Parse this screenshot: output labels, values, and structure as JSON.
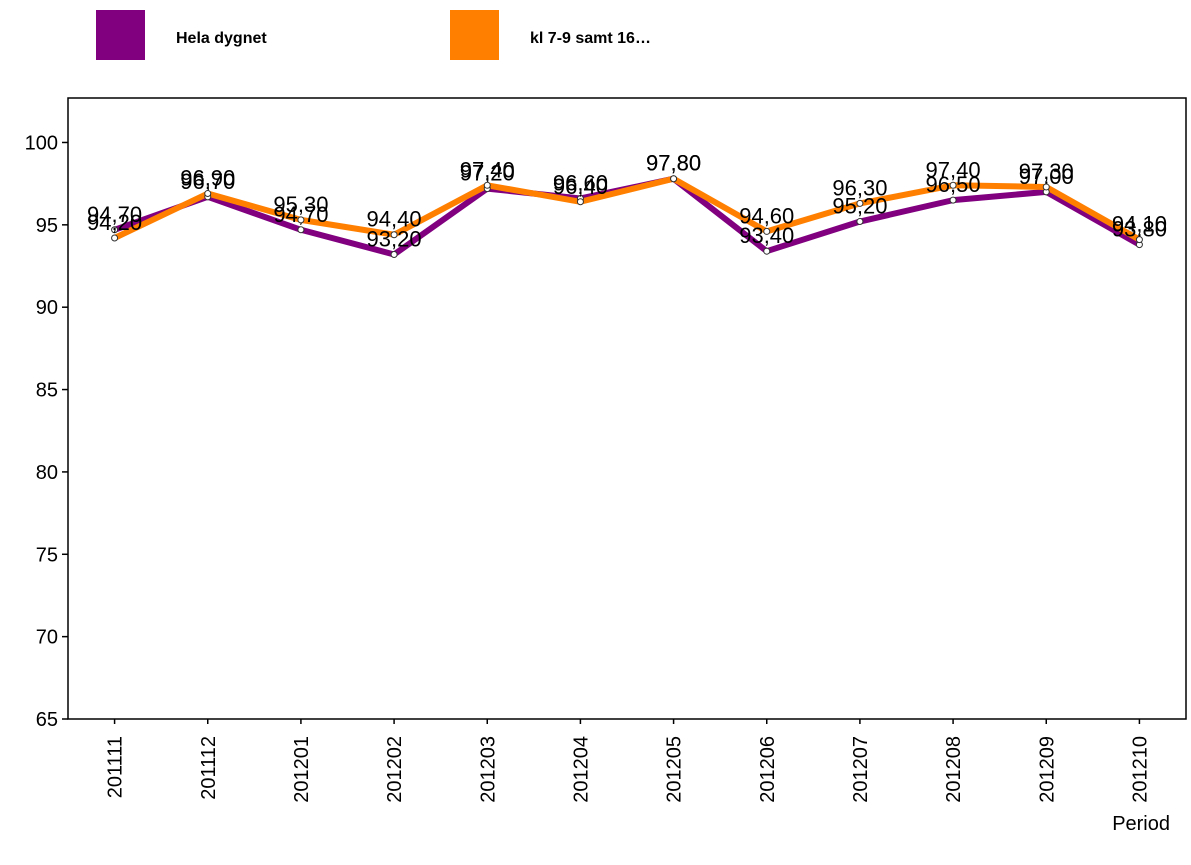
{
  "chart_data": {
    "type": "line",
    "x_label": "Period",
    "categories": [
      "201111",
      "201112",
      "201201",
      "201202",
      "201203",
      "201204",
      "201205",
      "201206",
      "201207",
      "201208",
      "201209",
      "201210"
    ],
    "series": [
      {
        "name": "Hela dygnet",
        "color": "#800080",
        "values": [
          94.7,
          96.7,
          94.7,
          93.2,
          97.2,
          96.6,
          97.8,
          93.4,
          95.2,
          96.5,
          97.0,
          93.8
        ],
        "value_labels": [
          "94,70",
          "96,70",
          "94,70",
          "93,20",
          "97,20",
          "96,60",
          "97,80",
          "93,40",
          "95,20",
          "96,50",
          "97,00",
          "93,80"
        ]
      },
      {
        "name": "kl 7-9 samt 16…",
        "color": "#ff8000",
        "values": [
          94.2,
          96.9,
          95.3,
          94.4,
          97.4,
          96.4,
          97.8,
          94.6,
          96.3,
          97.4,
          97.3,
          94.1
        ],
        "value_labels": [
          "94,20",
          "96,90",
          "95,30",
          "94,40",
          "97,40",
          "96,40",
          "97,80",
          "94,60",
          "96,30",
          "97,40",
          "97,30",
          "94,10"
        ]
      }
    ],
    "ylim": [
      65,
      102.7
    ],
    "yticks": [
      65,
      70,
      75,
      80,
      85,
      90,
      95,
      100
    ]
  }
}
